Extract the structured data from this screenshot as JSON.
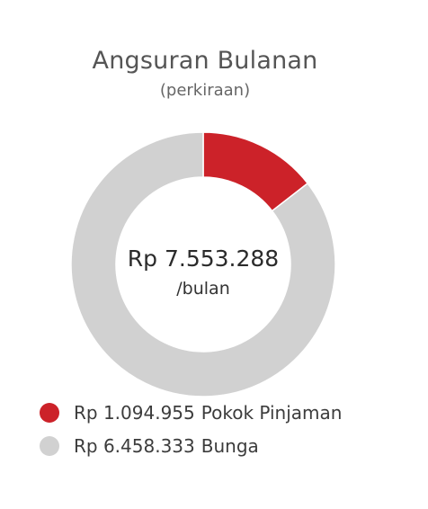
{
  "header": {
    "title": "Angsuran Bulanan",
    "subtitle": "(perkiraan)"
  },
  "center": {
    "amount": "Rp 7.553.288",
    "unit": "/bulan"
  },
  "chart_data": {
    "type": "pie",
    "style": "donut",
    "title": "Angsuran Bulanan",
    "subtitle": "(perkiraan)",
    "total": 7553288,
    "series": [
      {
        "name": "Pokok Pinjaman",
        "value": 1094955,
        "label": "Rp 1.094.955",
        "color": "#cc2229"
      },
      {
        "name": "Bunga",
        "value": 6458333,
        "label": "Rp 6.458.333",
        "color": "#d1d1d1"
      }
    ]
  },
  "legend": [
    {
      "value": "Rp 1.094.955",
      "label": "Pokok Pinjaman",
      "color": "#cc2229"
    },
    {
      "value": "Rp 6.458.333",
      "label": "Bunga",
      "color": "#d1d1d1"
    }
  ]
}
